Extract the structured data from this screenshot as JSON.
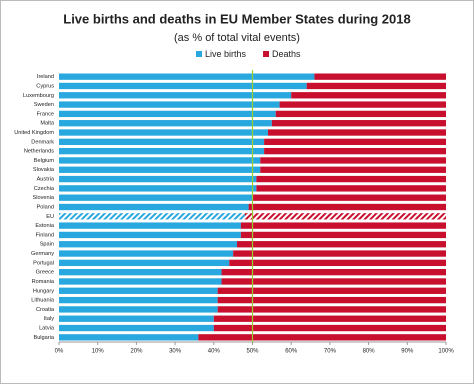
{
  "chart_data": {
    "type": "stacked-bar-horizontal",
    "title": "Live births and deaths in EU Member States during 2018",
    "subtitle": "(as % of total vital events)",
    "categories": [
      "Ireland",
      "Cyprus",
      "Luxembourg",
      "Sweden",
      "France",
      "Malta",
      "United Kingdom",
      "Denmark",
      "Netherlands",
      "Belgium",
      "Slovakia",
      "Austria",
      "Czechia",
      "Slovenia",
      "Poland",
      "EU",
      "Estonia",
      "Finland",
      "Spain",
      "Germany",
      "Portugal",
      "Greece",
      "Romania",
      "Hungary",
      "Lithuania",
      "Croatia",
      "Italy",
      "Latvia",
      "Bulgaria"
    ],
    "series": [
      {
        "name": "Live births",
        "color": "#29a8df",
        "values": [
          66,
          64,
          60,
          57,
          56,
          55,
          54,
          53,
          53,
          52,
          52,
          51,
          51,
          50,
          49,
          48,
          47,
          47,
          46,
          45,
          44,
          42,
          42,
          41,
          41,
          41,
          40,
          40,
          36
        ]
      },
      {
        "name": "Deaths",
        "color": "#c8102e",
        "values": [
          34,
          36,
          40,
          43,
          44,
          45,
          46,
          47,
          47,
          48,
          48,
          49,
          49,
          50,
          51,
          52,
          53,
          53,
          54,
          55,
          56,
          58,
          58,
          59,
          59,
          59,
          60,
          60,
          64
        ]
      }
    ],
    "hatched_category": "EU",
    "reference_line": 50,
    "reference_color": "#9acd32",
    "xlim": [
      0,
      100
    ],
    "xticks": [
      {
        "value": 0,
        "label": "0%"
      },
      {
        "value": 10,
        "label": "10%"
      },
      {
        "value": 20,
        "label": "20%"
      },
      {
        "value": 30,
        "label": "30%"
      },
      {
        "value": 40,
        "label": "40%"
      },
      {
        "value": 50,
        "label": "50%"
      },
      {
        "value": 60,
        "label": "60%"
      },
      {
        "value": 70,
        "label": "70%"
      },
      {
        "value": 80,
        "label": "80%"
      },
      {
        "value": 90,
        "label": "90%"
      },
      {
        "value": 100,
        "label": "100%"
      }
    ],
    "legend": "top"
  }
}
